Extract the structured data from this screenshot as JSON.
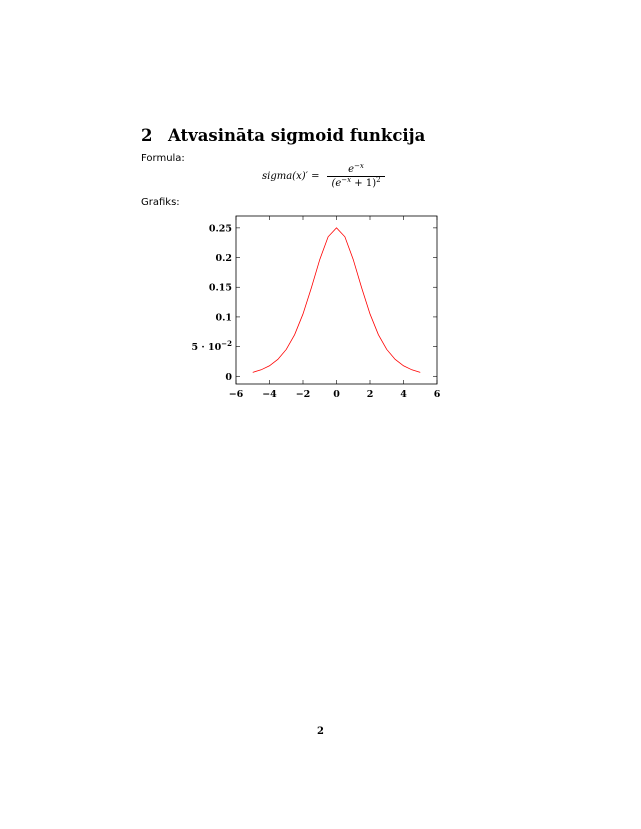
{
  "section": {
    "number": "2",
    "title": "Atvasināta sigmoid funkcija"
  },
  "formula_label": "Formula:",
  "formula": {
    "lhs": "sigma(x)′ =",
    "numerator_base": "e",
    "numerator_exp": "−x",
    "denominator_open": "(e",
    "denominator_exp": "−x",
    "denominator_mid": " + 1)",
    "denominator_pow": "2"
  },
  "graph_label": "Grafiks:",
  "chart_data": {
    "type": "line",
    "title": "",
    "xlabel": "",
    "ylabel": "",
    "xlim": [
      -6,
      6
    ],
    "ylim": [
      -0.013,
      0.27
    ],
    "x_ticks": [
      -6,
      -4,
      -2,
      0,
      2,
      4,
      6
    ],
    "x_tick_labels": [
      "−6",
      "−4",
      "−2",
      "0",
      "2",
      "4",
      "6"
    ],
    "y_ticks": [
      0,
      0.05,
      0.1,
      0.15,
      0.2,
      0.25
    ],
    "y_tick_labels": [
      "0",
      "5 · 10−2",
      "0.1",
      "0.15",
      "0.2",
      "0.25"
    ],
    "grid": false,
    "legend": "none",
    "series": [
      {
        "color": "#ff0000",
        "x": [
          -5,
          -4.5,
          -4,
          -3.5,
          -3,
          -2.5,
          -2,
          -1.5,
          -1,
          -0.5,
          0,
          0.5,
          1,
          1.5,
          2,
          2.5,
          3,
          3.5,
          4,
          4.5,
          5
        ],
        "y": [
          0.0066,
          0.0109,
          0.0177,
          0.0285,
          0.0452,
          0.0701,
          0.105,
          0.1491,
          0.1966,
          0.235,
          0.25,
          0.235,
          0.1966,
          0.1491,
          0.105,
          0.0701,
          0.0452,
          0.0285,
          0.0177,
          0.0109,
          0.0066
        ]
      }
    ]
  },
  "page_number": "2"
}
